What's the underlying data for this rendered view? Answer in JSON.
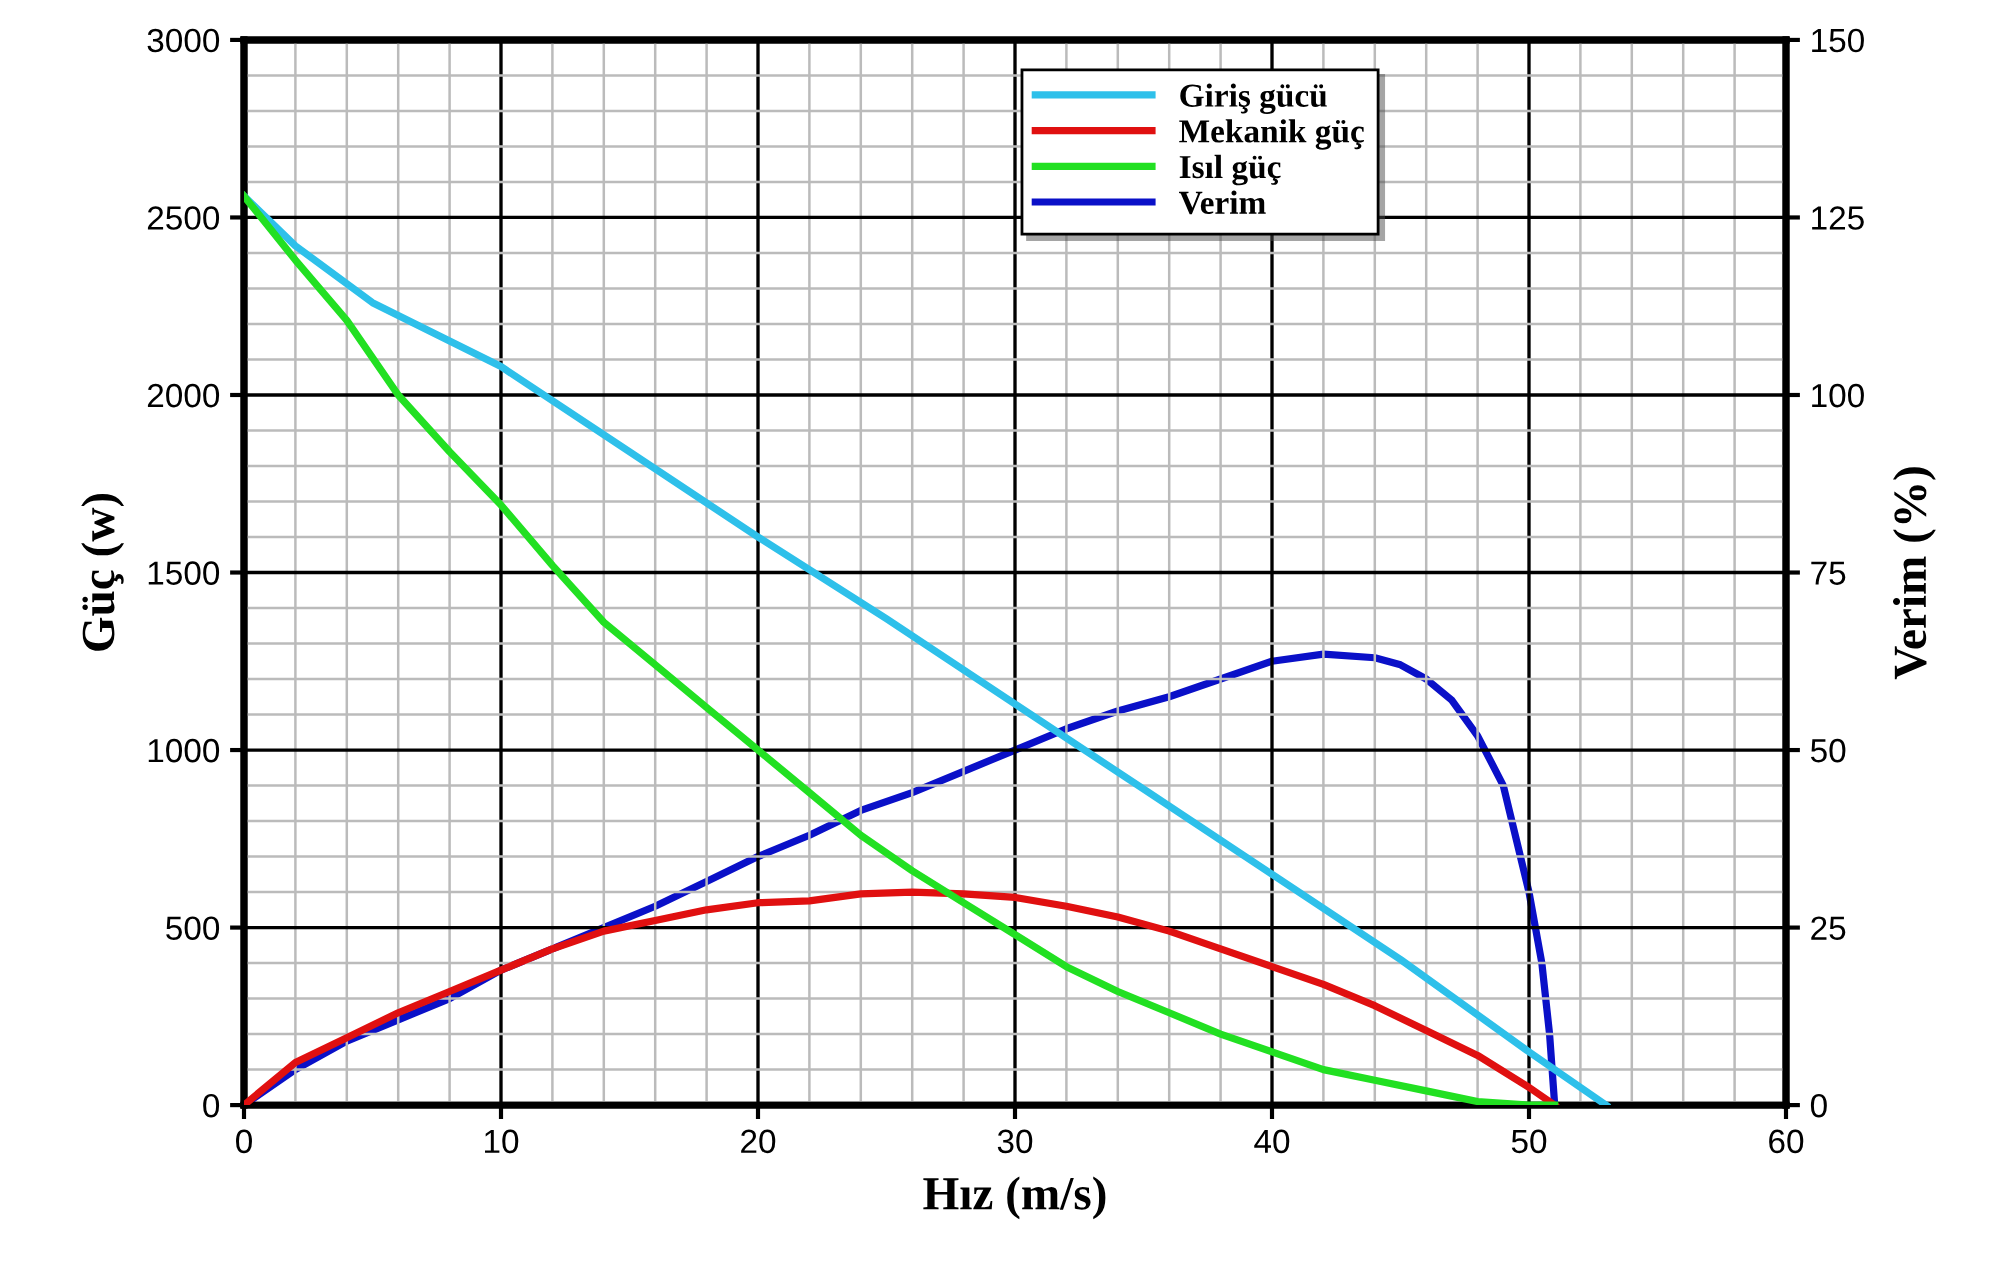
{
  "chart_data": {
    "type": "line",
    "xlabel": "Hız (m/s)",
    "ylabel": "Güç (w)",
    "y2label": "Verim (%)",
    "xlim": [
      0,
      60
    ],
    "xticks": [
      0,
      10,
      20,
      30,
      40,
      50,
      60
    ],
    "ylim": [
      0,
      3000
    ],
    "yticks": [
      0,
      500,
      1000,
      1500,
      2000,
      2500,
      3000
    ],
    "y2lim": [
      0,
      150
    ],
    "y2ticks": [
      0,
      25,
      50,
      75,
      100,
      125,
      150
    ],
    "grid": true,
    "legend": "top",
    "line_style": "solid",
    "marker": "none",
    "series": [
      {
        "name": "Giriş gücü",
        "color": "#2ec0ea",
        "x": [
          0,
          2,
          5,
          10,
          15,
          20,
          25,
          30,
          35,
          40,
          45,
          50,
          53
        ],
        "values": [
          2560,
          2420,
          2260,
          2080,
          1840,
          1600,
          1370,
          1130,
          890,
          650,
          410,
          150,
          0
        ]
      },
      {
        "name": "Mekanik güç",
        "color": "#e01010",
        "x": [
          0,
          2,
          4,
          6,
          8,
          10,
          12,
          14,
          16,
          18,
          20,
          22,
          24,
          26,
          28,
          30,
          32,
          34,
          36,
          38,
          40,
          42,
          44,
          46,
          48,
          50,
          51
        ],
        "values": [
          0,
          120,
          190,
          260,
          320,
          380,
          440,
          490,
          520,
          550,
          570,
          575,
          595,
          600,
          595,
          585,
          560,
          530,
          490,
          440,
          390,
          340,
          280,
          210,
          140,
          50,
          0
        ]
      },
      {
        "name": "Isıl güç",
        "color": "#22e022",
        "x": [
          0,
          2,
          4,
          6,
          8,
          10,
          12,
          14,
          16,
          18,
          20,
          22,
          24,
          26,
          28,
          30,
          32,
          34,
          36,
          38,
          40,
          42,
          44,
          46,
          48,
          50,
          51
        ],
        "values": [
          2560,
          2380,
          2210,
          2000,
          1840,
          1690,
          1520,
          1360,
          1240,
          1120,
          1000,
          880,
          760,
          660,
          570,
          480,
          390,
          320,
          260,
          200,
          150,
          100,
          70,
          40,
          10,
          0,
          0
        ]
      },
      {
        "name": "Verim",
        "color": "#0a10c8",
        "axis": "y2",
        "x": [
          0,
          2,
          4,
          6,
          8,
          10,
          12,
          14,
          16,
          18,
          20,
          22,
          24,
          26,
          28,
          30,
          32,
          34,
          36,
          38,
          40,
          42,
          44,
          45,
          46,
          47,
          48,
          49,
          50,
          50.5,
          50.8,
          51
        ],
        "values": [
          0,
          5,
          9,
          12,
          15,
          19,
          22,
          25,
          28,
          31.5,
          35,
          38,
          41.5,
          44,
          47,
          50,
          53,
          55.5,
          57.5,
          60,
          62.5,
          63.5,
          63,
          62,
          60,
          57,
          52,
          45,
          30,
          20,
          10,
          0
        ]
      }
    ]
  }
}
